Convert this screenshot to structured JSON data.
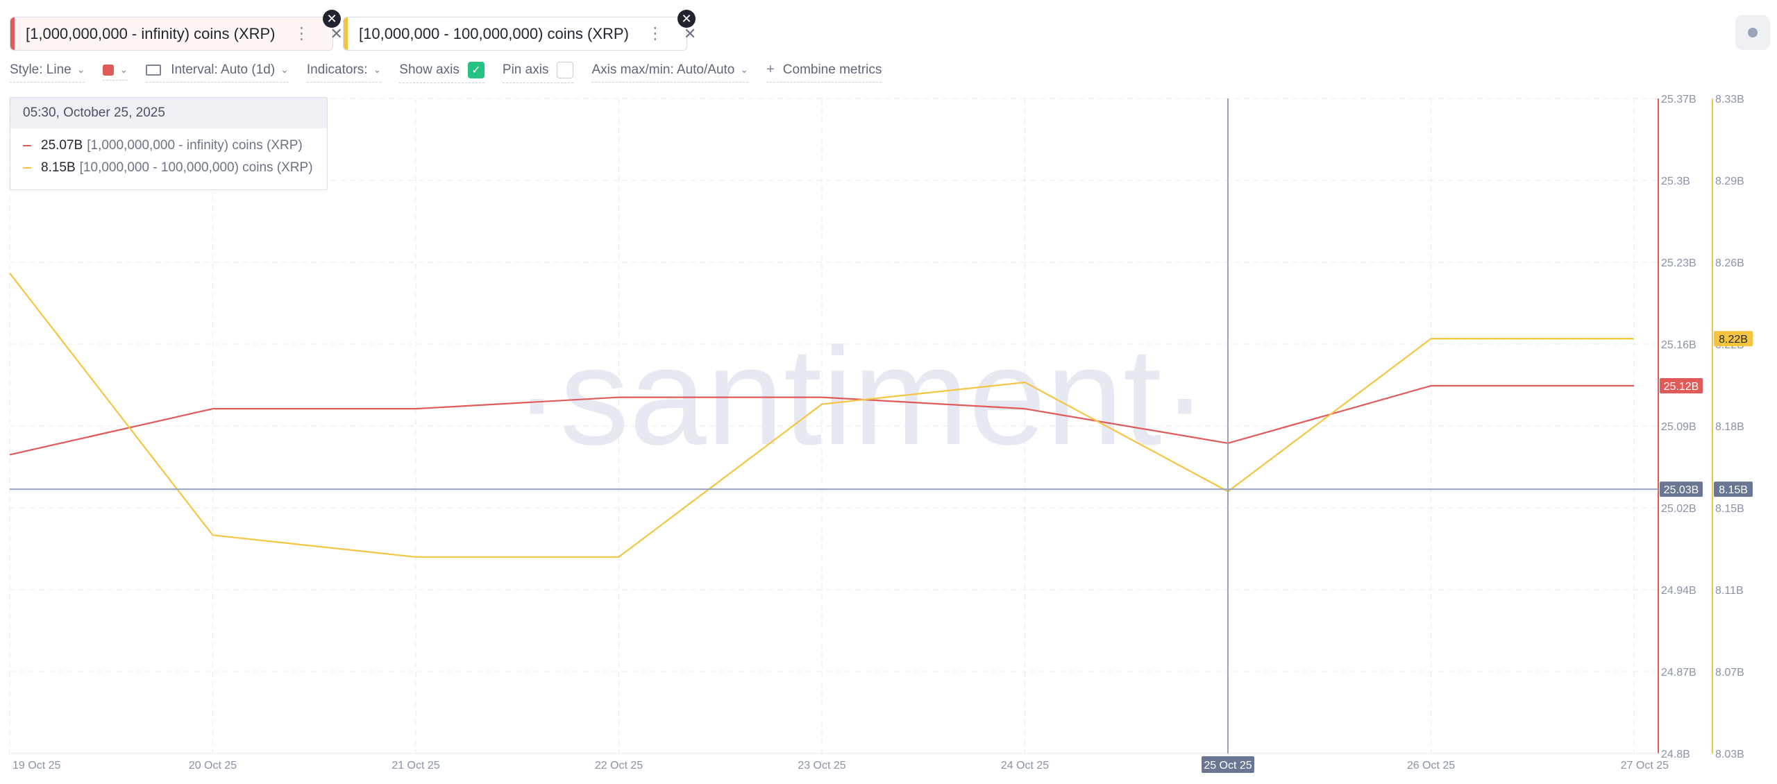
{
  "tabs": [
    {
      "label": "[1,000,000,000 - infinity) coins (XRP)",
      "color": "#e05a5a"
    },
    {
      "label": "[10,000,000 - 100,000,000) coins (XRP)",
      "color": "#f5c542"
    }
  ],
  "toolbar": {
    "style": "Style: Line",
    "interval": "Interval: Auto (1d)",
    "indicators": "Indicators:",
    "show_axis": "Show axis",
    "pin_axis": "Pin axis",
    "axis_maxmin": "Axis max/min: Auto/Auto",
    "combine": "Combine metrics"
  },
  "tooltip": {
    "date": "05:30, October 25, 2025",
    "rows": [
      {
        "value": "25.07B",
        "name": "[1,000,000,000 - infinity) coins (XRP)",
        "color": "#e05a5a"
      },
      {
        "value": "8.15B",
        "name": "[10,000,000 - 100,000,000) coins (XRP)",
        "color": "#f5c542"
      }
    ]
  },
  "watermark": "·santiment·",
  "chart_data": {
    "type": "line",
    "x": [
      "19 Oct 25",
      "20 Oct 25",
      "21 Oct 25",
      "22 Oct 25",
      "23 Oct 25",
      "24 Oct 25",
      "25 Oct 25",
      "26 Oct 25",
      "27 Oct 25"
    ],
    "series": [
      {
        "name": "[1,000,000,000 - infinity) coins (XRP)",
        "color": "#e05a5a",
        "axis": "left",
        "points": [
          {
            "x": "19 Oct 25",
            "y": 25.06
          },
          {
            "x": "20 Oct 25",
            "y": 25.1
          },
          {
            "x": "21 Oct 25",
            "y": 25.1
          },
          {
            "x": "22 Oct 25",
            "y": 25.11
          },
          {
            "x": "23 Oct 25",
            "y": 25.11
          },
          {
            "x": "24 Oct 25",
            "y": 25.1
          },
          {
            "x": "25 Oct 25",
            "y": 25.07
          },
          {
            "x": "26 Oct 25",
            "y": 25.12
          },
          {
            "x": "27 Oct 25",
            "y": 25.12
          }
        ]
      },
      {
        "name": "[10,000,000 - 100,000,000) coins (XRP)",
        "color": "#f5c542",
        "axis": "right",
        "points": [
          {
            "x": "19 Oct 25",
            "y": 8.25
          },
          {
            "x": "20 Oct 25",
            "y": 8.13
          },
          {
            "x": "21 Oct 25",
            "y": 8.12
          },
          {
            "x": "22 Oct 25",
            "y": 8.12
          },
          {
            "x": "23 Oct 25",
            "y": 8.19
          },
          {
            "x": "24 Oct 25",
            "y": 8.2
          },
          {
            "x": "25 Oct 25",
            "y": 8.15
          },
          {
            "x": "26 Oct 25",
            "y": 8.22
          },
          {
            "x": "27 Oct 25",
            "y": 8.22
          }
        ]
      }
    ],
    "left_axis": {
      "ticks": [
        "25.37B",
        "25.3B",
        "25.23B",
        "25.16B",
        "25.09B",
        "25.02B",
        "24.94B",
        "24.87B",
        "24.8B"
      ],
      "range": [
        24.8,
        25.37
      ]
    },
    "right_axis": {
      "ticks": [
        "8.33B",
        "8.29B",
        "8.26B",
        "8.22B",
        "8.18B",
        "8.15B",
        "8.11B",
        "8.07B",
        "8.03B"
      ],
      "range": [
        8.03,
        8.33
      ]
    },
    "crosshair": {
      "x": "25 Oct 25",
      "left_value": "25.03B",
      "right_value": "8.15B"
    },
    "last_values": {
      "left": "25.12B",
      "right": "8.22B"
    },
    "grid": true
  }
}
